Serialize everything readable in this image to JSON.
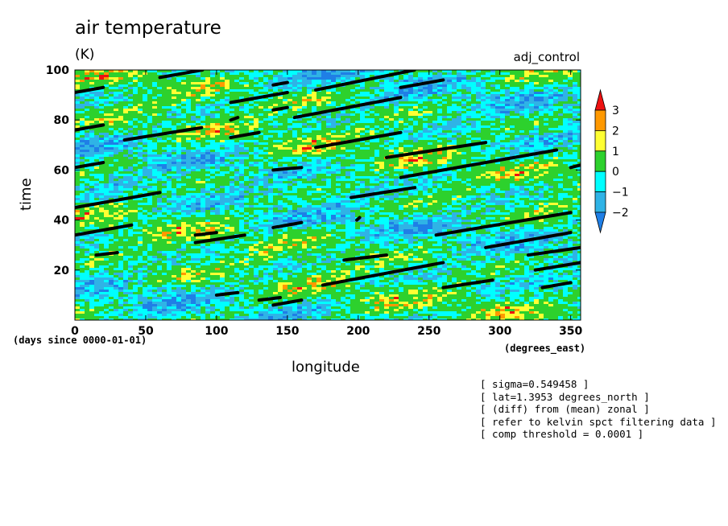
{
  "chart_data": {
    "type": "heatmap",
    "title": "air temperature",
    "units": "(K)",
    "run_label": "adj_control",
    "xlabel": "longitude",
    "x_units": "(degrees_east)",
    "ylabel": "time",
    "y_units": "(days since 0000-01-01)",
    "xlim": [
      0,
      357
    ],
    "ylim": [
      0,
      100
    ],
    "x_ticks": [
      0,
      50,
      100,
      150,
      200,
      250,
      300,
      350
    ],
    "y_ticks": [
      20,
      40,
      60,
      80,
      100
    ],
    "colorbar": {
      "levels": [
        -2,
        -1,
        0,
        1,
        2,
        3
      ],
      "colors": [
        "#1f7fe6",
        "#2fb3e6",
        "#00ffff",
        "#2dd12d",
        "#ffff33",
        "#ff9900",
        "#ee1111"
      ]
    },
    "kelvin_wave_tracks": [
      {
        "x": [
          0,
          20
        ],
        "y": [
          91,
          93
        ]
      },
      {
        "x": [
          0,
          20
        ],
        "y": [
          76,
          78
        ]
      },
      {
        "x": [
          0,
          20
        ],
        "y": [
          61,
          63
        ]
      },
      {
        "x": [
          0,
          60
        ],
        "y": [
          45,
          51
        ]
      },
      {
        "x": [
          0,
          40
        ],
        "y": [
          34,
          38
        ]
      },
      {
        "x": [
          15,
          30
        ],
        "y": [
          26,
          27
        ]
      },
      {
        "x": [
          60,
          90
        ],
        "y": [
          97,
          100
        ]
      },
      {
        "x": [
          35,
          90
        ],
        "y": [
          72,
          77
        ]
      },
      {
        "x": [
          85,
          100
        ],
        "y": [
          34,
          35
        ]
      },
      {
        "x": [
          85,
          120
        ],
        "y": [
          31,
          34
        ]
      },
      {
        "x": [
          110,
          150
        ],
        "y": [
          87,
          91
        ]
      },
      {
        "x": [
          110,
          115
        ],
        "y": [
          80,
          81
        ]
      },
      {
        "x": [
          110,
          130
        ],
        "y": [
          73,
          75
        ]
      },
      {
        "x": [
          140,
          150
        ],
        "y": [
          94,
          95
        ]
      },
      {
        "x": [
          140,
          150
        ],
        "y": [
          84,
          85
        ]
      },
      {
        "x": [
          140,
          160
        ],
        "y": [
          60,
          61
        ]
      },
      {
        "x": [
          140,
          160
        ],
        "y": [
          37,
          39
        ]
      },
      {
        "x": [
          100,
          115
        ],
        "y": [
          10,
          11
        ]
      },
      {
        "x": [
          130,
          145
        ],
        "y": [
          8,
          9
        ]
      },
      {
        "x": [
          140,
          160
        ],
        "y": [
          6,
          8
        ]
      },
      {
        "x": [
          155,
          230
        ],
        "y": [
          81,
          89
        ]
      },
      {
        "x": [
          170,
          240
        ],
        "y": [
          92,
          100
        ]
      },
      {
        "x": [
          170,
          230
        ],
        "y": [
          69,
          75
        ]
      },
      {
        "x": [
          195,
          240
        ],
        "y": [
          49,
          53
        ]
      },
      {
        "x": [
          190,
          220
        ],
        "y": [
          24,
          26
        ]
      },
      {
        "x": [
          175,
          260
        ],
        "y": [
          14,
          23
        ]
      },
      {
        "x": [
          230,
          260
        ],
        "y": [
          93,
          96
        ]
      },
      {
        "x": [
          220,
          290
        ],
        "y": [
          65,
          71
        ]
      },
      {
        "x": [
          230,
          340
        ],
        "y": [
          57,
          68
        ]
      },
      {
        "x": [
          255,
          350
        ],
        "y": [
          34,
          43
        ]
      },
      {
        "x": [
          260,
          295
        ],
        "y": [
          13,
          16
        ]
      },
      {
        "x": [
          290,
          350
        ],
        "y": [
          29,
          35
        ]
      },
      {
        "x": [
          320,
          357
        ],
        "y": [
          26,
          29
        ]
      },
      {
        "x": [
          325,
          357
        ],
        "y": [
          20,
          23
        ]
      },
      {
        "x": [
          330,
          350
        ],
        "y": [
          13,
          15
        ]
      },
      {
        "x": [
          350,
          357
        ],
        "y": [
          61,
          62
        ]
      },
      {
        "x": [
          199,
          201
        ],
        "y": [
          40,
          41
        ]
      }
    ]
  },
  "notes": [
    "[ sigma=0.549458 ]",
    "[ lat=1.3953 degrees_north ]",
    "[ (diff) from (mean) zonal ]",
    "[ refer to kelvin spct filtering data ]",
    "[ comp threshold = 0.0001 ]"
  ]
}
